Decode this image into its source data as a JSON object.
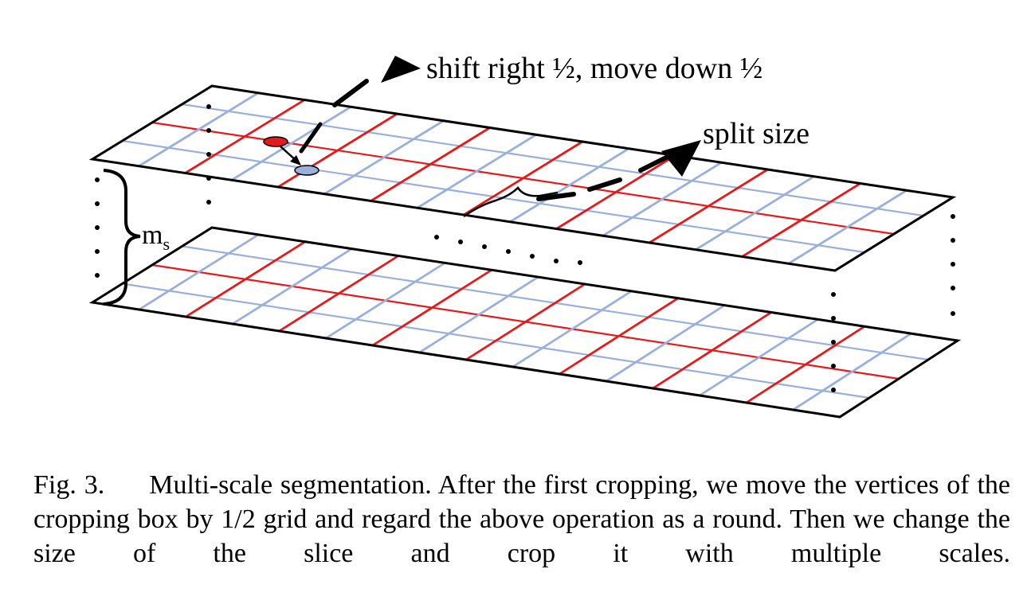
{
  "figure": {
    "annotation_shift": "shift right ½, move down ½",
    "annotation_split": "split size",
    "annotation_scale_base": "m",
    "annotation_scale_sub": "s",
    "colors": {
      "outline": "#000000",
      "red_grid": "#e41a1c",
      "blue_grid": "#9ab0dc",
      "red_point": "#e41a1c",
      "blue_point": "#9ab0dc"
    }
  },
  "caption": {
    "label": "Fig. 3.",
    "text": "Multi-scale segmentation. After the first cropping, we move the vertices of the cropping box by 1/2 grid and regard the above operation as a round. Then we change the size of the slice and crop it with multiple scales."
  }
}
